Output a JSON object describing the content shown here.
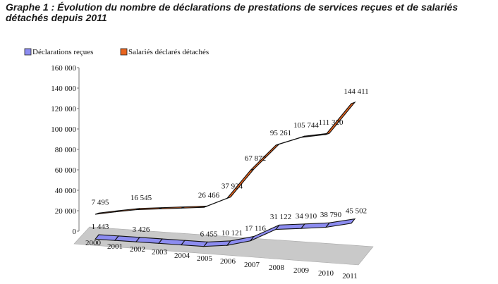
{
  "title": "Graphe 1 : Évolution du nombre de déclarations de prestations de services reçues et de salariés détachés depuis 2011",
  "chart_data": {
    "type": "line",
    "title": "Graphe 1 : Évolution du nombre de déclarations de prestations de services reçues et de salariés détachés depuis 2011",
    "x": [
      "2000",
      "2001",
      "2002",
      "2003",
      "2004",
      "2005",
      "2006",
      "2007",
      "2008",
      "2009",
      "2010",
      "2011"
    ],
    "series": [
      {
        "name": "Déclarations reçues",
        "color": "#8c8cf0",
        "values": [
          1443,
          null,
          3426,
          null,
          null,
          6455,
          10121,
          17116,
          31122,
          34910,
          38790,
          45502
        ],
        "labels": [
          "1 443",
          "",
          "3 426",
          "",
          "",
          "6 455",
          "10 121",
          "17 116",
          "31 122",
          "34 910",
          "38 790",
          "45 502"
        ]
      },
      {
        "name": "Salariés déclarés détachés",
        "color": "#e8641e",
        "values": [
          7495,
          null,
          16545,
          null,
          null,
          26466,
          37924,
          67872,
          95261,
          105744,
          111320,
          144411
        ],
        "labels": [
          "7 495",
          "",
          "16 545",
          "",
          "",
          "26 466",
          "37 924",
          "67 872",
          "95 261",
          "105 744",
          "111 320",
          "144 411"
        ]
      }
    ],
    "y_ticks": [
      "160 000",
      "140 000",
      "120 000",
      "100 000",
      "80 000",
      "60 000",
      "40 000",
      "20 000",
      "0"
    ],
    "ylim": [
      0,
      160000
    ],
    "legend_position": "top-left",
    "grid": false
  }
}
